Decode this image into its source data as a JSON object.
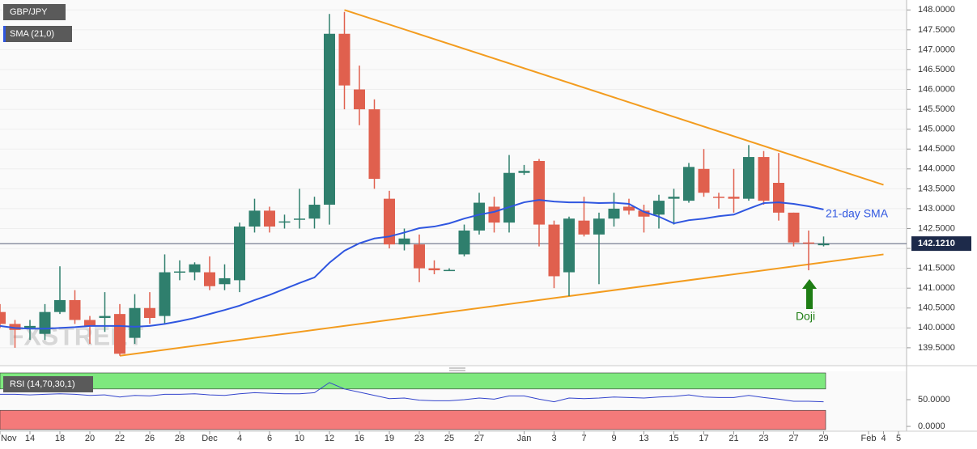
{
  "chart_data": {
    "type": "candlestick",
    "title": "GBP/JPY",
    "categories": [
      "Nov",
      null,
      "14",
      null,
      "18",
      null,
      "20",
      null,
      "22",
      null,
      "26",
      null,
      "28",
      null,
      "Dec",
      null,
      "4",
      null,
      "6",
      null,
      "10",
      null,
      "12",
      null,
      "16",
      null,
      "19",
      null,
      "23",
      null,
      "25",
      null,
      "27",
      null,
      null,
      "Jan",
      null,
      "3",
      null,
      "7",
      null,
      "9",
      null,
      "13",
      null,
      "15",
      null,
      "17",
      null,
      "21",
      null,
      "23",
      null,
      "27",
      null,
      "29",
      null,
      null,
      "Feb",
      "4",
      "5"
    ],
    "open": [
      140.4,
      140.1,
      140.0,
      139.85,
      140.4,
      140.7,
      140.2,
      140.25,
      140.35,
      139.75,
      140.5,
      140.3,
      141.4,
      141.4,
      141.4,
      141.1,
      141.2,
      142.55,
      142.95,
      142.65,
      142.72,
      142.75,
      143.1,
      147.4,
      146.0,
      145.5,
      143.25,
      142.1,
      142.1,
      141.5,
      141.45,
      141.85,
      142.45,
      143.05,
      142.65,
      143.9,
      144.2,
      142.6,
      141.4,
      142.7,
      142.35,
      142.75,
      143.05,
      142.95,
      142.85,
      143.25,
      143.2,
      144.0,
      143.3,
      143.3,
      143.25,
      144.3,
      143.65,
      142.9,
      142.15,
      142.08,
      null,
      null,
      null,
      null,
      null
    ],
    "high": [
      140.6,
      140.2,
      140.2,
      140.6,
      141.55,
      140.95,
      140.3,
      140.9,
      140.6,
      140.85,
      140.9,
      141.85,
      141.7,
      141.65,
      141.8,
      141.6,
      142.65,
      143.25,
      143.05,
      142.85,
      143.5,
      143.3,
      147.9,
      147.95,
      146.6,
      145.75,
      143.45,
      142.5,
      142.35,
      141.7,
      141.5,
      142.6,
      143.4,
      143.3,
      144.35,
      144.1,
      144.25,
      142.7,
      142.8,
      143.3,
      142.9,
      143.4,
      143.25,
      143.1,
      143.35,
      143.5,
      144.15,
      144.5,
      143.4,
      144.0,
      144.6,
      144.45,
      144.4,
      142.9,
      142.45,
      142.3,
      null,
      null,
      null,
      null,
      null
    ],
    "low": [
      140.0,
      139.5,
      139.7,
      139.7,
      140.35,
      140.1,
      139.6,
      139.9,
      139.3,
      139.6,
      140.1,
      140.1,
      141.2,
      141.2,
      140.95,
      140.95,
      140.9,
      142.4,
      142.4,
      142.5,
      142.5,
      142.5,
      142.6,
      145.5,
      145.1,
      143.5,
      142.0,
      141.95,
      141.15,
      141.35,
      141.45,
      141.8,
      142.35,
      142.4,
      142.4,
      143.85,
      142.05,
      141.0,
      140.8,
      142.3,
      141.1,
      142.55,
      142.85,
      142.4,
      142.5,
      142.6,
      143.15,
      143.3,
      143.0,
      142.9,
      143.2,
      143.1,
      142.7,
      142.05,
      141.45,
      142.05,
      null,
      null,
      null,
      null,
      null
    ],
    "close": [
      140.1,
      139.95,
      140.05,
      140.4,
      140.7,
      140.2,
      140.05,
      140.3,
      139.35,
      140.5,
      140.25,
      141.4,
      141.42,
      141.6,
      141.05,
      141.25,
      142.55,
      142.95,
      142.55,
      142.68,
      142.75,
      143.1,
      147.4,
      146.1,
      145.5,
      143.75,
      142.1,
      142.25,
      141.5,
      141.45,
      141.46,
      142.45,
      143.15,
      142.65,
      143.9,
      143.95,
      142.6,
      141.3,
      142.75,
      142.35,
      142.75,
      143.0,
      142.95,
      142.8,
      143.2,
      143.3,
      144.05,
      143.4,
      143.28,
      143.25,
      144.3,
      143.2,
      142.9,
      142.15,
      142.13,
      142.12,
      null,
      null,
      null,
      null,
      null
    ],
    "up_color": "#2f7f6d",
    "down_color": "#e0604e",
    "ylim": [
      139.05,
      148.25
    ],
    "yticks": [
      {
        "value": 139.5,
        "label": "139.5000"
      },
      {
        "value": 140.0,
        "label": "140.0000"
      },
      {
        "value": 140.5,
        "label": "140.5000"
      },
      {
        "value": 141.0,
        "label": "141.0000"
      },
      {
        "value": 141.5,
        "label": "141.5000"
      },
      {
        "value": 142.0,
        "label": "142.0000"
      },
      {
        "value": 142.5,
        "label": "142.5000"
      },
      {
        "value": 143.0,
        "label": "143.0000"
      },
      {
        "value": 143.5,
        "label": "143.5000"
      },
      {
        "value": 144.0,
        "label": "144.0000"
      },
      {
        "value": 144.5,
        "label": "144.5000"
      },
      {
        "value": 145.0,
        "label": "145.0000"
      },
      {
        "value": 145.5,
        "label": "145.5000"
      },
      {
        "value": 146.0,
        "label": "146.0000"
      },
      {
        "value": 146.5,
        "label": "146.5000"
      },
      {
        "value": 147.0,
        "label": "147.0000"
      },
      {
        "value": 147.5,
        "label": "147.5000"
      },
      {
        "value": 148.0,
        "label": "148.0000"
      }
    ],
    "grid": true,
    "last_price": {
      "value": 142.121,
      "label": "142.1210"
    },
    "sma": {
      "name": "SMA (21,0)",
      "label": "21-day SMA",
      "color": "#2f56e0",
      "values": [
        140.05,
        140.0,
        139.98,
        139.98,
        140.0,
        140.02,
        140.05,
        140.05,
        140.05,
        140.03,
        140.05,
        140.1,
        140.17,
        140.25,
        140.35,
        140.45,
        140.56,
        140.7,
        140.83,
        140.98,
        141.13,
        141.27,
        141.64,
        141.94,
        142.13,
        142.25,
        142.3,
        142.4,
        142.51,
        142.55,
        142.63,
        142.75,
        142.85,
        142.92,
        143.04,
        143.16,
        143.22,
        143.18,
        143.16,
        143.16,
        143.14,
        143.15,
        143.12,
        142.92,
        142.8,
        142.63,
        142.71,
        142.75,
        142.81,
        142.85,
        143.0,
        143.14,
        143.16,
        143.12,
        143.06,
        142.98,
        null,
        null,
        null,
        null,
        null
      ]
    },
    "trendlines": [
      {
        "color": "#f39c1f",
        "x": [
          23,
          59
        ],
        "y": [
          148.0,
          143.6
        ]
      },
      {
        "color": "#f39c1f",
        "x": [
          8,
          59
        ],
        "y": [
          139.3,
          141.85
        ]
      }
    ],
    "annotation": "Doji",
    "watermark": "FXSTREET",
    "rsi": {
      "name": "RSI (14,70,30,1)",
      "color": "#3344cc",
      "values": [
        60,
        60,
        59,
        60,
        61,
        60,
        58,
        59,
        55,
        58,
        57,
        60,
        60,
        61,
        59,
        58,
        61,
        63,
        62,
        61,
        61,
        63,
        82,
        70,
        64,
        58,
        52,
        53,
        49,
        48,
        48,
        50,
        53,
        51,
        57,
        57,
        51,
        46,
        53,
        52,
        53,
        55,
        54,
        53,
        55,
        56,
        59,
        55,
        54,
        54,
        58,
        54,
        51,
        47,
        47,
        46,
        null,
        null,
        null,
        null,
        null
      ],
      "ylim": [
        -6,
        100
      ],
      "yticks": [
        {
          "value": 0,
          "label": "0.0000"
        },
        {
          "value": 50,
          "label": "50.0000"
        }
      ],
      "overbought": 70,
      "oversold": 30,
      "overbought_color": "#7ee87e",
      "oversold_color": "#f47a7a"
    }
  }
}
